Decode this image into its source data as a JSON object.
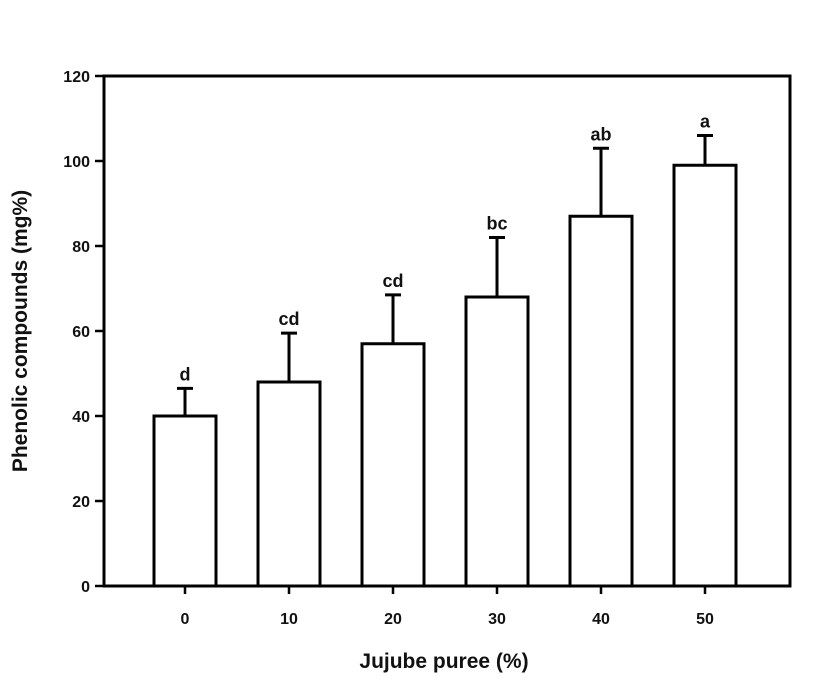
{
  "chart_data": {
    "type": "bar",
    "title": "",
    "xlabel": "Jujube puree (%)",
    "ylabel": "Phenolic compounds (mg%)",
    "categories": [
      "0",
      "10",
      "20",
      "30",
      "40",
      "50"
    ],
    "values": [
      40,
      48,
      57,
      68,
      87,
      99
    ],
    "error_upper": [
      6.5,
      11.5,
      11.5,
      14,
      16,
      7
    ],
    "significance_labels": [
      "d",
      "cd",
      "cd",
      "bc",
      "ab",
      "a"
    ],
    "ylim": [
      0,
      120
    ],
    "yticks": [
      "0",
      "20",
      "40",
      "60",
      "80",
      "100",
      "120"
    ],
    "grid": false,
    "legend": "none",
    "bar_fill": "#ffffff",
    "bar_stroke": "#000000"
  }
}
